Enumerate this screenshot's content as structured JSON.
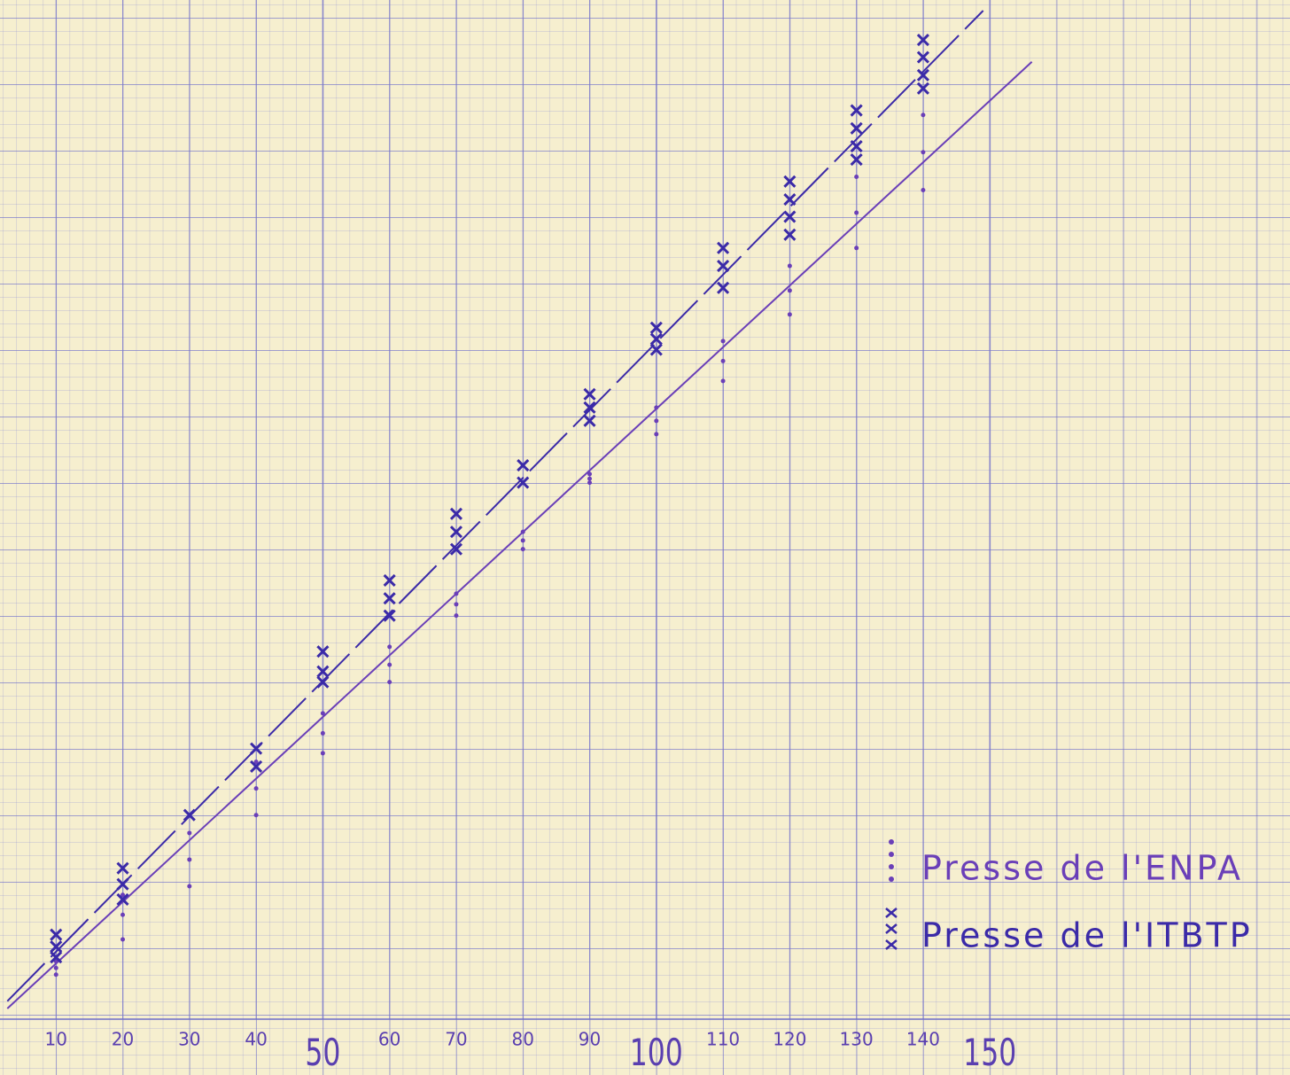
{
  "chart_data": {
    "type": "scatter",
    "xlim": [
      1.6,
      195
    ],
    "ylim": [
      -8.4,
      153.3
    ],
    "xticks": [
      10,
      20,
      30,
      40,
      50,
      60,
      70,
      80,
      90,
      100,
      110,
      120,
      130,
      140,
      150
    ],
    "series": [
      {
        "name": "Presse de l'ENPA",
        "color": "#6a3fb8",
        "marker": "dot",
        "x": [
          10,
          10,
          10,
          20,
          20,
          20,
          30,
          30,
          30,
          40,
          40,
          40,
          50,
          50,
          50,
          60,
          60,
          60,
          70,
          70,
          70,
          80,
          80,
          80,
          90,
          90,
          90,
          100,
          100,
          100,
          110,
          110,
          110,
          120,
          120,
          120,
          130,
          130,
          130,
          140,
          140,
          140
        ],
        "values": [
          8.7,
          7.7,
          6.7,
          18.7,
          15.7,
          12,
          28,
          24,
          20,
          38.7,
          34.7,
          30.7,
          46,
          43,
          40,
          56,
          53.3,
          50.7,
          64,
          62.4,
          60.7,
          73.3,
          72,
          70.7,
          82,
          81.3,
          80.7,
          92,
          90,
          88,
          102,
          99,
          96,
          113.3,
          109.6,
          106,
          126.7,
          121.3,
          116,
          136,
          130.4,
          124.7
        ],
        "line": {
          "x": [
            2.7,
            156.3
          ],
          "y": [
            1.6,
            144
          ],
          "dashed": false
        }
      },
      {
        "name": "Presse de l'ITBTP",
        "color": "#3b2aa8",
        "marker": "cross",
        "x": [
          10,
          10,
          10,
          20,
          20,
          20,
          30,
          40,
          40,
          50,
          50,
          50,
          60,
          60,
          60,
          70,
          70,
          70,
          80,
          80,
          90,
          90,
          90,
          100,
          100,
          100,
          110,
          110,
          110,
          120,
          120,
          120,
          120,
          130,
          130,
          130,
          130,
          140,
          140,
          140,
          140
        ],
        "values": [
          12.7,
          10.9,
          9.3,
          22.7,
          20.3,
          18,
          30.7,
          40.7,
          38,
          55.3,
          52.3,
          50.7,
          66,
          63.3,
          60.7,
          76,
          73.3,
          70.7,
          83.3,
          80.7,
          94,
          92,
          90,
          104,
          102.3,
          100.7,
          116,
          113.3,
          110,
          126,
          123.3,
          120.7,
          118,
          136.7,
          134,
          131.3,
          129.3,
          147.3,
          144.7,
          142,
          140
        ],
        "line": {
          "x": [
            2.7,
            149
          ],
          "y": [
            2.7,
            151.7
          ],
          "dashed": true
        }
      }
    ]
  }
}
